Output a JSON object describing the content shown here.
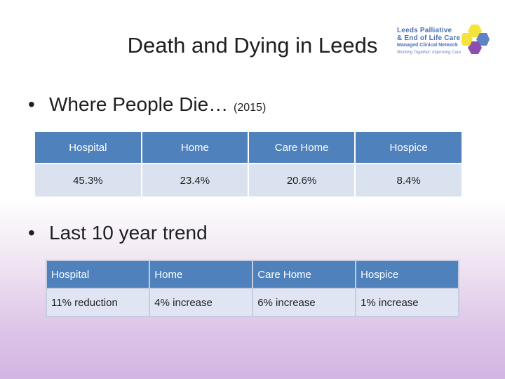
{
  "title": "Death and Dying in Leeds",
  "logo": {
    "line1": "Leeds Palliative",
    "line2": "& End of Life Care",
    "line3": "Managed Clinical Network",
    "line4": "Working Together, Improving Care",
    "colors": [
      "#f4e33a",
      "#5b83c6",
      "#8a4fb0"
    ]
  },
  "bullet1": {
    "text": "Where People Die…",
    "suffix": "(2015)"
  },
  "table1": {
    "headers": [
      "Hospital",
      "Home",
      "Care Home",
      "Hospice"
    ],
    "values": [
      "45.3%",
      "23.4%",
      "20.6%",
      "8.4%"
    ]
  },
  "bullet2": {
    "text": "Last 10 year trend"
  },
  "table2": {
    "headers": [
      "Hospital",
      "Home",
      "Care Home",
      "Hospice"
    ],
    "values": [
      "11% reduction",
      "4% increase",
      "6% increase",
      "1% increase"
    ]
  }
}
